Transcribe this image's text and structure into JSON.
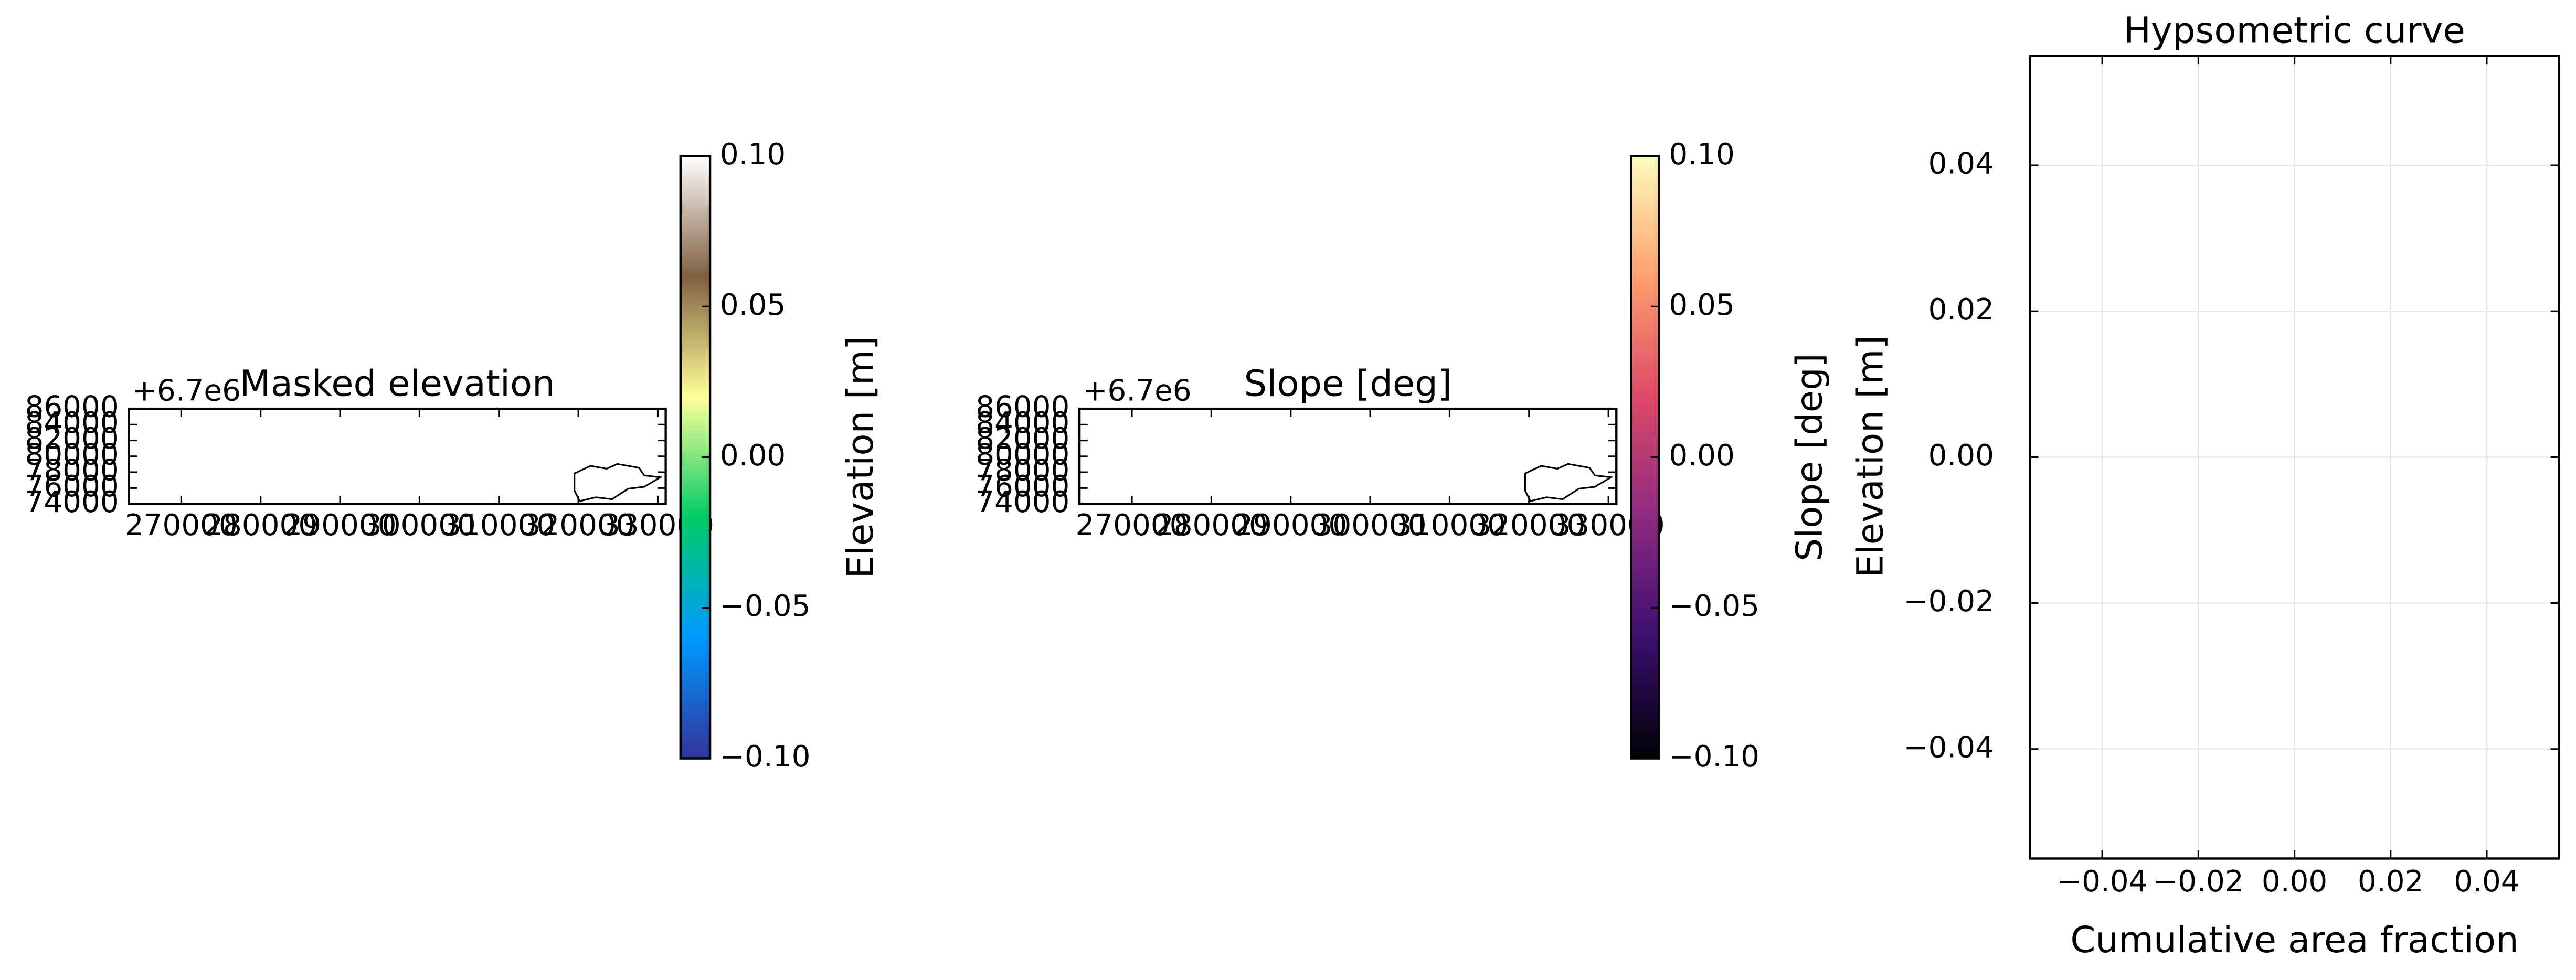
{
  "chart_data": [
    {
      "type": "map",
      "title": "Masked elevation",
      "offset_label": "+6.7e6",
      "xlim": [
        263400,
        331000
      ],
      "xticks": [
        270000,
        280000,
        290000,
        300000,
        310000,
        320000,
        330000
      ],
      "ylim": [
        74000,
        86000
      ],
      "yticks": [
        74000,
        76000,
        78000,
        80000,
        82000,
        84000,
        86000
      ],
      "colorbar_label": "Elevation [m]",
      "clim": [
        -0.1,
        0.1
      ],
      "cticks": [
        {
          "value": -0.1,
          "label": "−0.10"
        },
        {
          "value": -0.05,
          "label": "−0.05"
        },
        {
          "value": 0,
          "label": "0.00"
        },
        {
          "value": 0.05,
          "label": "0.05"
        },
        {
          "value": 0.1,
          "label": "0.10"
        }
      ],
      "colormap": [
        "#333399",
        "#0099ff",
        "#00cc66",
        "#ffff99",
        "#806040",
        "#ffffff"
      ]
    },
    {
      "type": "map",
      "title": "Slope [deg]",
      "offset_label": "+6.7e6",
      "xlim": [
        263400,
        331000
      ],
      "xticks": [
        270000,
        280000,
        290000,
        300000,
        310000,
        320000,
        330000
      ],
      "ylim": [
        74000,
        86000
      ],
      "yticks": [
        74000,
        76000,
        78000,
        80000,
        82000,
        84000,
        86000
      ],
      "colorbar_label": "Slope [deg]",
      "clim": [
        -0.1,
        0.1
      ],
      "cticks": [
        {
          "value": -0.1,
          "label": "−0.10"
        },
        {
          "value": -0.05,
          "label": "−0.05"
        },
        {
          "value": 0,
          "label": "0.00"
        },
        {
          "value": 0.05,
          "label": "0.05"
        },
        {
          "value": 0.1,
          "label": "0.10"
        }
      ],
      "colormap": [
        "#000004",
        "#3b0f70",
        "#8c2981",
        "#de4968",
        "#fe9f6d",
        "#fcfdbf"
      ]
    },
    {
      "type": "line",
      "title": "Hypsometric curve",
      "xlabel": "Cumulative area fraction",
      "ylabel": "Elevation [m]",
      "xlim": [
        -0.055,
        0.055
      ],
      "xticks": [
        {
          "value": -0.04,
          "label": "−0.04"
        },
        {
          "value": -0.02,
          "label": "−0.02"
        },
        {
          "value": 0,
          "label": "0.00"
        },
        {
          "value": 0.02,
          "label": "0.02"
        },
        {
          "value": 0.04,
          "label": "0.04"
        }
      ],
      "ylim": [
        -0.055,
        0.055
      ],
      "yticks": [
        {
          "value": -0.04,
          "label": "−0.04"
        },
        {
          "value": -0.02,
          "label": "−0.02"
        },
        {
          "value": 0,
          "label": "0.00"
        },
        {
          "value": 0.02,
          "label": "0.02"
        },
        {
          "value": 0.04,
          "label": "0.04"
        }
      ],
      "grid": true
    }
  ]
}
